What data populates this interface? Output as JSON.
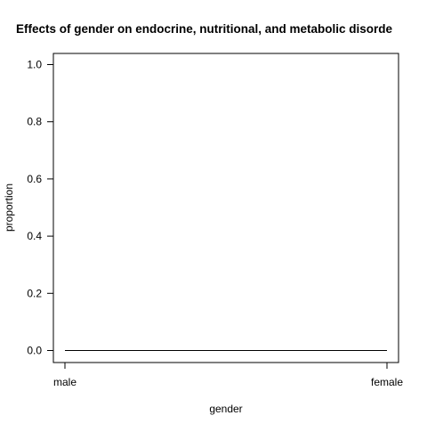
{
  "chart_data": {
    "type": "line",
    "title": "Effects of gender on endocrine, nutritional, and metabolic disorde",
    "xlabel": "gender",
    "ylabel": "proportion",
    "categories": [
      "male",
      "female"
    ],
    "series": [
      {
        "values": [
          0.0,
          0.0
        ]
      }
    ],
    "ylim": [
      0,
      1
    ],
    "yticks": [
      0.0,
      0.2,
      0.4,
      0.6,
      0.8,
      1.0
    ],
    "ytick_labels": [
      "0.0",
      "0.2",
      "0.4",
      "0.6",
      "0.8",
      "1.0"
    ],
    "grid": false,
    "legend": "none"
  }
}
